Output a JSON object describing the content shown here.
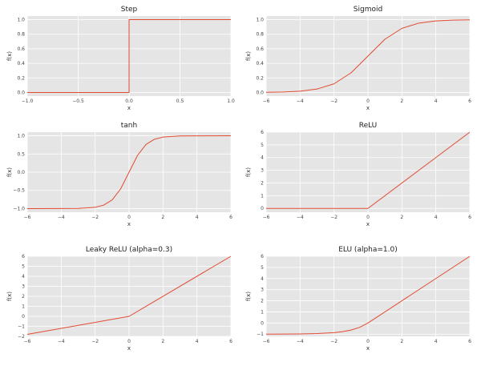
{
  "chart_data": [
    {
      "type": "line",
      "function": "step",
      "title": "Step",
      "xlabel": "x",
      "ylabel": "f(x)",
      "xlim": [
        -1.0,
        1.0
      ],
      "ylim": [
        -0.05,
        1.05
      ],
      "xticks": [
        -1.0,
        -0.5,
        0.0,
        0.5,
        1.0
      ],
      "xtick_labels": [
        "−1.0",
        "−0.5",
        "0.0",
        "0.5",
        "1.0"
      ],
      "yticks": [
        0.0,
        0.2,
        0.4,
        0.6,
        0.8,
        1.0
      ],
      "ytick_labels": [
        "0.0",
        "0.2",
        "0.4",
        "0.6",
        "0.8",
        "1.0"
      ],
      "x": [
        -1.0,
        0.0,
        0.0,
        1.0
      ],
      "y": [
        0.0,
        0.0,
        1.0,
        1.0
      ],
      "color": "#e24a33",
      "grid": true
    },
    {
      "type": "line",
      "function": "sigmoid",
      "title": "Sigmoid",
      "xlabel": "x",
      "ylabel": "f(x)",
      "xlim": [
        -6,
        6
      ],
      "ylim": [
        -0.05,
        1.05
      ],
      "xticks": [
        -6,
        -4,
        -2,
        0,
        2,
        4,
        6
      ],
      "xtick_labels": [
        "−6",
        "−4",
        "−2",
        "0",
        "2",
        "4",
        "6"
      ],
      "yticks": [
        0.0,
        0.2,
        0.4,
        0.6,
        0.8,
        1.0
      ],
      "ytick_labels": [
        "0.0",
        "0.2",
        "0.4",
        "0.6",
        "0.8",
        "1.0"
      ],
      "x": [
        -6,
        -5,
        -4,
        -3,
        -2,
        -1,
        0,
        1,
        2,
        3,
        4,
        5,
        6
      ],
      "y": [
        0.002,
        0.007,
        0.018,
        0.047,
        0.119,
        0.269,
        0.5,
        0.731,
        0.881,
        0.953,
        0.982,
        0.993,
        0.998
      ],
      "color": "#e24a33",
      "grid": true
    },
    {
      "type": "line",
      "function": "tanh",
      "title": "tanh",
      "xlabel": "x",
      "ylabel": "f(x)",
      "xlim": [
        -6,
        6
      ],
      "ylim": [
        -1.1,
        1.1
      ],
      "xticks": [
        -6,
        -4,
        -2,
        0,
        2,
        4,
        6
      ],
      "xtick_labels": [
        "−6",
        "−4",
        "−2",
        "0",
        "2",
        "4",
        "6"
      ],
      "yticks": [
        -1.0,
        -0.5,
        0.0,
        0.5,
        1.0
      ],
      "ytick_labels": [
        "−1.0",
        "−0.5",
        "0.0",
        "0.5",
        "1.0"
      ],
      "x": [
        -6,
        -4,
        -3,
        -2,
        -1.5,
        -1,
        -0.5,
        0,
        0.5,
        1,
        1.5,
        2,
        3,
        4,
        6
      ],
      "y": [
        -1.0,
        -0.999,
        -0.995,
        -0.964,
        -0.905,
        -0.762,
        -0.462,
        0.0,
        0.462,
        0.762,
        0.905,
        0.964,
        0.995,
        0.999,
        1.0
      ],
      "color": "#e24a33",
      "grid": true
    },
    {
      "type": "line",
      "function": "relu",
      "title": "ReLU",
      "xlabel": "x",
      "ylabel": "f(x)",
      "xlim": [
        -6,
        6
      ],
      "ylim": [
        -0.3,
        6
      ],
      "xticks": [
        -6,
        -4,
        -2,
        0,
        2,
        4,
        6
      ],
      "xtick_labels": [
        "−6",
        "−4",
        "−2",
        "0",
        "2",
        "4",
        "6"
      ],
      "yticks": [
        0,
        1,
        2,
        3,
        4,
        5,
        6
      ],
      "ytick_labels": [
        "0",
        "1",
        "2",
        "3",
        "4",
        "5",
        "6"
      ],
      "x": [
        -6,
        0,
        6
      ],
      "y": [
        0,
        0,
        6
      ],
      "color": "#e24a33",
      "grid": true
    },
    {
      "type": "line",
      "function": "leaky_relu",
      "title": "Leaky ReLU (alpha=0.3)",
      "xlabel": "x",
      "ylabel": "f(x)",
      "xlim": [
        -6,
        6
      ],
      "ylim": [
        -2,
        6
      ],
      "xticks": [
        -6,
        -4,
        -2,
        0,
        2,
        4,
        6
      ],
      "xtick_labels": [
        "−6",
        "−4",
        "−2",
        "0",
        "2",
        "4",
        "6"
      ],
      "yticks": [
        -2,
        -1,
        0,
        1,
        2,
        3,
        4,
        5,
        6
      ],
      "ytick_labels": [
        "−2",
        "−1",
        "0",
        "1",
        "2",
        "3",
        "4",
        "5",
        "6"
      ],
      "x": [
        -6,
        0,
        6
      ],
      "y": [
        -1.8,
        0,
        6
      ],
      "color": "#e24a33",
      "grid": true
    },
    {
      "type": "line",
      "function": "elu",
      "title": "ELU (alpha=1.0)",
      "xlabel": "x",
      "ylabel": "f(x)",
      "xlim": [
        -6,
        6
      ],
      "ylim": [
        -1.2,
        6
      ],
      "xticks": [
        -6,
        -4,
        -2,
        0,
        2,
        4,
        6
      ],
      "xtick_labels": [
        "−6",
        "−4",
        "−2",
        "0",
        "2",
        "4",
        "6"
      ],
      "yticks": [
        -1,
        0,
        1,
        2,
        3,
        4,
        5,
        6
      ],
      "ytick_labels": [
        "−1",
        "0",
        "1",
        "2",
        "3",
        "4",
        "5",
        "6"
      ],
      "x": [
        -6,
        -5,
        -4,
        -3,
        -2,
        -1.5,
        -1,
        -0.5,
        0,
        6
      ],
      "y": [
        -0.998,
        -0.993,
        -0.982,
        -0.95,
        -0.865,
        -0.777,
        -0.632,
        -0.393,
        0,
        6
      ],
      "color": "#e24a33",
      "grid": true
    }
  ],
  "style": {
    "panel_background": "#e5e5e5",
    "grid_color": "#ffffff",
    "line_color": "#e24a33",
    "text_color": "#333333"
  }
}
